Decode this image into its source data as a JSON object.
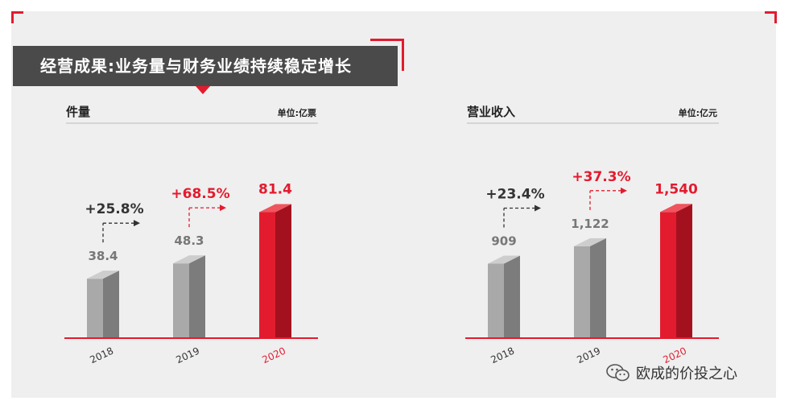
{
  "title": "经营成果:业务量与财务业绩持续稳定增长",
  "watermark": {
    "text": "欧成的价投之心",
    "icon": "wechat-icon"
  },
  "colors": {
    "accent": "#e31b2e",
    "title_bg": "#4a4a4a",
    "bar_gray": "#a9a9a9",
    "bar_red": "#e31b2e"
  },
  "chart_data": [
    {
      "type": "bar",
      "title": "件量",
      "unit_label": "单位:亿票",
      "categories": [
        "2018",
        "2019",
        "2020"
      ],
      "values": [
        38.4,
        48.3,
        81.4
      ],
      "value_labels": [
        "38.4",
        "48.3",
        "81.4"
      ],
      "growth": [
        {
          "label": "+25.8%",
          "from": "2018",
          "to": "2019"
        },
        {
          "label": "+68.5%",
          "from": "2019",
          "to": "2020"
        }
      ],
      "ylim": [
        0,
        90
      ]
    },
    {
      "type": "bar",
      "title": "营业收入",
      "unit_label": "单位:亿元",
      "categories": [
        "2018",
        "2019",
        "2020"
      ],
      "values": [
        909,
        1122,
        1540
      ],
      "value_labels": [
        "909",
        "1,122",
        "1,540"
      ],
      "growth": [
        {
          "label": "+23.4%",
          "from": "2018",
          "to": "2019"
        },
        {
          "label": "+37.3%",
          "from": "2019",
          "to": "2020"
        }
      ],
      "ylim": [
        0,
        1700
      ]
    }
  ]
}
